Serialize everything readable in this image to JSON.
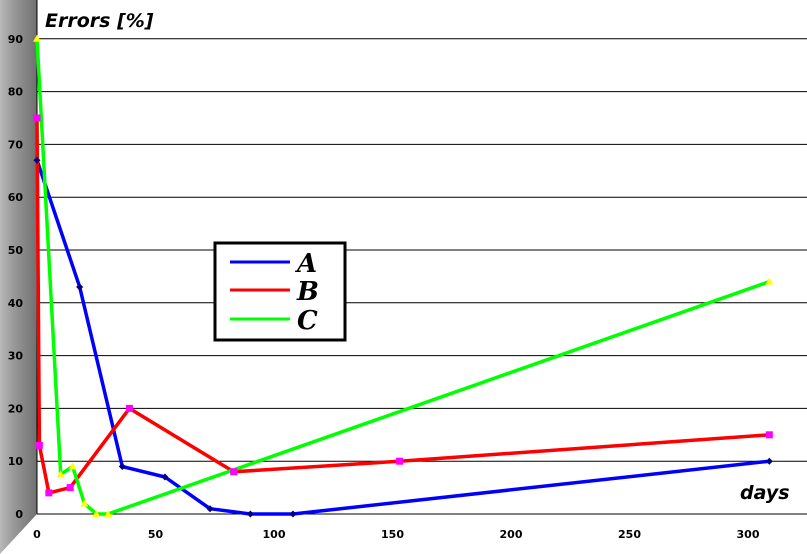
{
  "chart_data": {
    "type": "line",
    "ylabel": "Errors [%]",
    "xlabel": "days",
    "xlim": [
      0,
      310
    ],
    "ylim": [
      0,
      90
    ],
    "xticks": [
      0,
      50,
      100,
      150,
      200,
      250,
      300
    ],
    "yticks": [
      0,
      10,
      20,
      30,
      40,
      50,
      60,
      70,
      80,
      90
    ],
    "grid": "horizontal",
    "legend_position": "center-left",
    "series": [
      {
        "name": "A",
        "color": "#0000ff",
        "marker": "diamond",
        "points": [
          [
            0,
            67
          ],
          [
            18,
            43
          ],
          [
            36,
            9
          ],
          [
            54,
            7
          ],
          [
            73,
            1
          ],
          [
            90,
            0
          ],
          [
            108,
            0
          ],
          [
            309,
            10
          ]
        ]
      },
      {
        "name": "B",
        "color": "#ff0000",
        "marker": "square",
        "points": [
          [
            0,
            75
          ],
          [
            1,
            13
          ],
          [
            5,
            4
          ],
          [
            14,
            5
          ],
          [
            39,
            20
          ],
          [
            83,
            8
          ],
          [
            153,
            10
          ],
          [
            309,
            15
          ]
        ]
      },
      {
        "name": "C",
        "color": "#00ff00",
        "marker": "triangle",
        "points": [
          [
            0,
            90
          ],
          [
            10,
            7.5
          ],
          [
            15,
            9
          ],
          [
            20,
            2
          ],
          [
            25,
            0
          ],
          [
            30,
            0
          ],
          [
            309,
            44
          ]
        ]
      }
    ]
  }
}
